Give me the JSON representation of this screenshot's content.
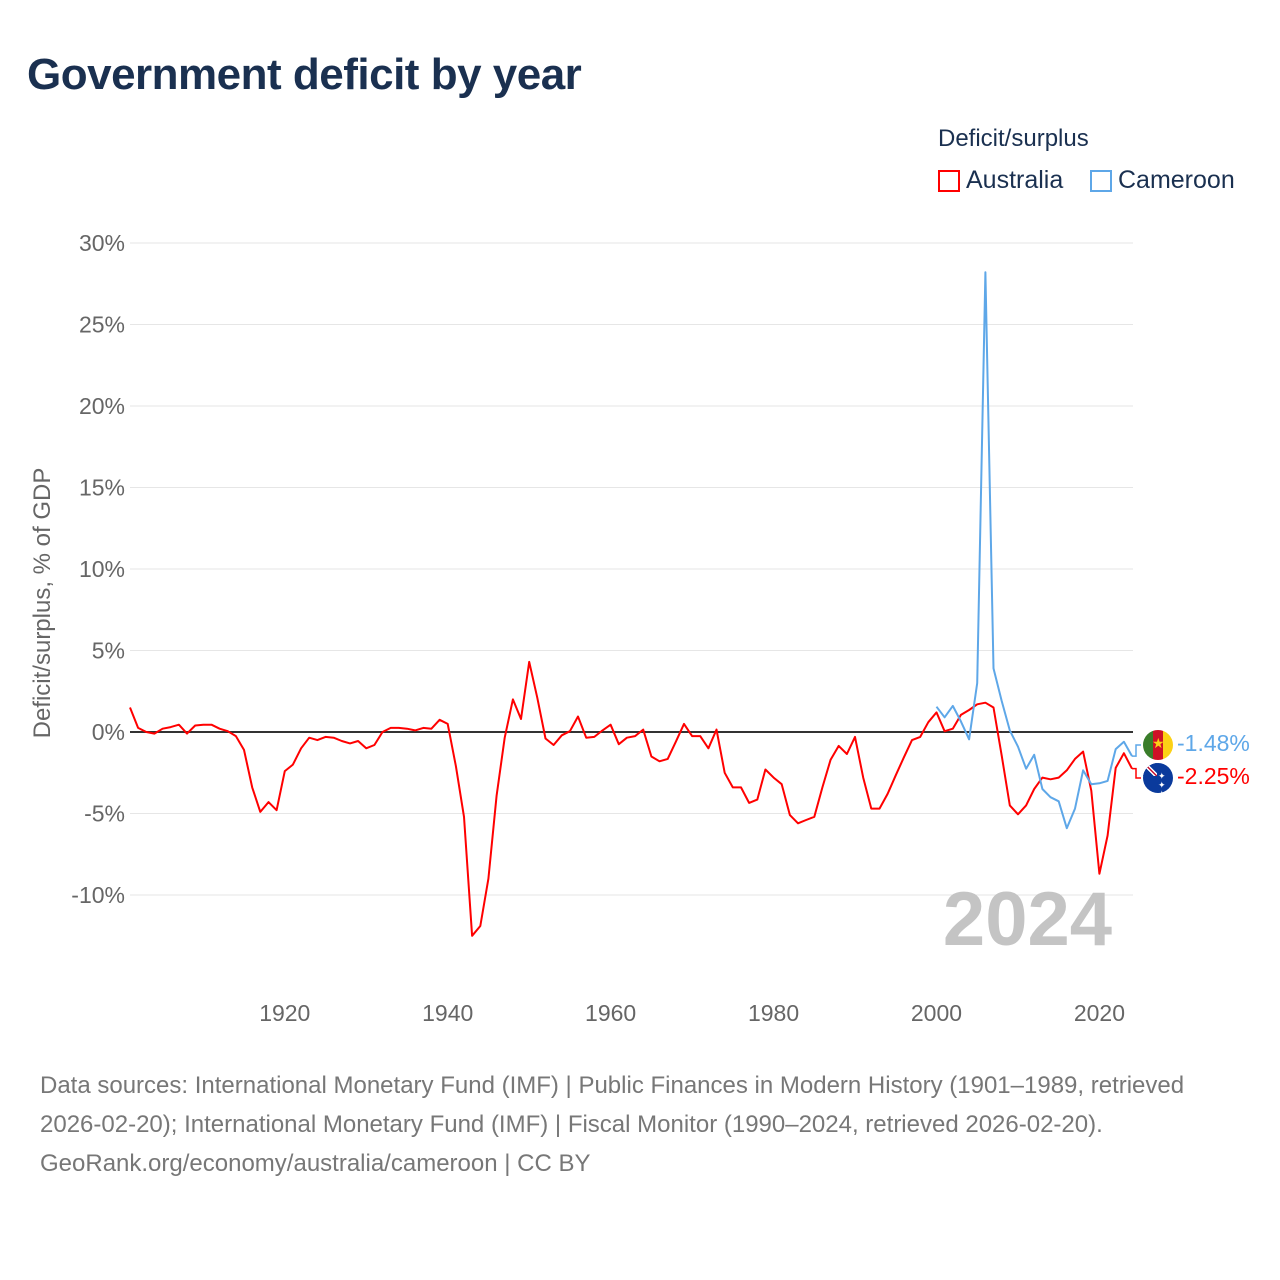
{
  "title": "Government deficit by year",
  "legend": {
    "title": "Deficit/surplus",
    "items": [
      {
        "label": "Australia",
        "color": "#ff0000"
      },
      {
        "label": "Cameroon",
        "color": "#5ea7e8"
      }
    ]
  },
  "chart_data": {
    "type": "line",
    "title": "Government deficit by year",
    "ylabel": "Deficit/surplus, % of GDP",
    "xlabel": "",
    "xlim": [
      1901,
      2024
    ],
    "ylim": [
      -15,
      30
    ],
    "yticks": [
      30,
      25,
      20,
      15,
      10,
      5,
      0,
      -5,
      -10
    ],
    "ytick_labels": [
      "30%",
      "25%",
      "20%",
      "15%",
      "10%",
      "5%",
      "0%",
      "-5%",
      "-10%"
    ],
    "xticks": [
      1920,
      1940,
      1960,
      1980,
      2000,
      2020
    ],
    "xtick_labels": [
      "1920",
      "1940",
      "1960",
      "1980",
      "2000",
      "2020"
    ],
    "grid": true,
    "year_watermark": "2024",
    "series": [
      {
        "name": "Australia",
        "color": "#ff0000",
        "start_year": 1901,
        "end_label": "-2.25%",
        "flag": "australia-flag",
        "values": [
          1.5,
          0.25,
          0,
          -0.1,
          0.2,
          0.3,
          0.45,
          -0.1,
          0.4,
          0.45,
          0.45,
          0.2,
          0.05,
          -0.25,
          -1.1,
          -3.4,
          -4.9,
          -4.3,
          -4.8,
          -2.4,
          -2.0,
          -1.0,
          -0.35,
          -0.5,
          -0.3,
          -0.35,
          -0.55,
          -0.7,
          -0.55,
          -1.0,
          -0.8,
          0,
          0.25,
          0.25,
          0.2,
          0.1,
          0.25,
          0.2,
          0.75,
          0.5,
          -2.1,
          -5.2,
          -12.5,
          -11.9,
          -9.0,
          -3.9,
          -0.35,
          2.0,
          0.8,
          4.3,
          2.1,
          -0.4,
          -0.8,
          -0.2,
          0.05,
          0.95,
          -0.35,
          -0.3,
          0.1,
          0.45,
          -0.75,
          -0.35,
          -0.25,
          0.15,
          -1.5,
          -1.8,
          -1.65,
          -0.6,
          0.5,
          -0.25,
          -0.25,
          -1.0,
          0.15,
          -2.5,
          -3.4,
          -3.4,
          -4.35,
          -4.15,
          -2.3,
          -2.8,
          -3.2,
          -5.1,
          -5.6,
          -5.4,
          -5.2,
          -3.4,
          -1.7,
          -0.85,
          -1.35,
          -0.3,
          -2.8,
          -4.7,
          -4.7,
          -3.8,
          -2.65,
          -1.55,
          -0.5,
          -0.3,
          0.6,
          1.2,
          0.05,
          0.2,
          1.05,
          1.35,
          1.7,
          1.8,
          1.5,
          -1.45,
          -4.5,
          -5.05,
          -4.5,
          -3.5,
          -2.8,
          -2.9,
          -2.8,
          -2.35,
          -1.65,
          -1.2,
          -3.6,
          -8.7,
          -6.35,
          -2.2,
          -1.3,
          -2.25
        ]
      },
      {
        "name": "Cameroon",
        "color": "#5ea7e8",
        "start_year": 2000,
        "end_label": "-1.48%",
        "flag": "cameroon-flag",
        "values": [
          1.55,
          0.9,
          1.6,
          0.65,
          -0.45,
          3.0,
          28.2,
          3.9,
          1.9,
          0.1,
          -0.9,
          -2.25,
          -1.4,
          -3.5,
          -4.0,
          -4.25,
          -5.9,
          -4.7,
          -2.35,
          -3.2,
          -3.15,
          -3.0,
          -1.05,
          -0.6,
          -1.48
        ]
      }
    ]
  },
  "footer": {
    "sources": "Data sources: International Monetary Fund (IMF) | Public Finances in Modern History (1901–1989, retrieved 2026-02-20); International Monetary Fund (IMF) | Fiscal Monitor (1990–2024, retrieved 2026-02-20).",
    "link": "GeoRank.org/economy/australia/cameroon | CC BY"
  }
}
